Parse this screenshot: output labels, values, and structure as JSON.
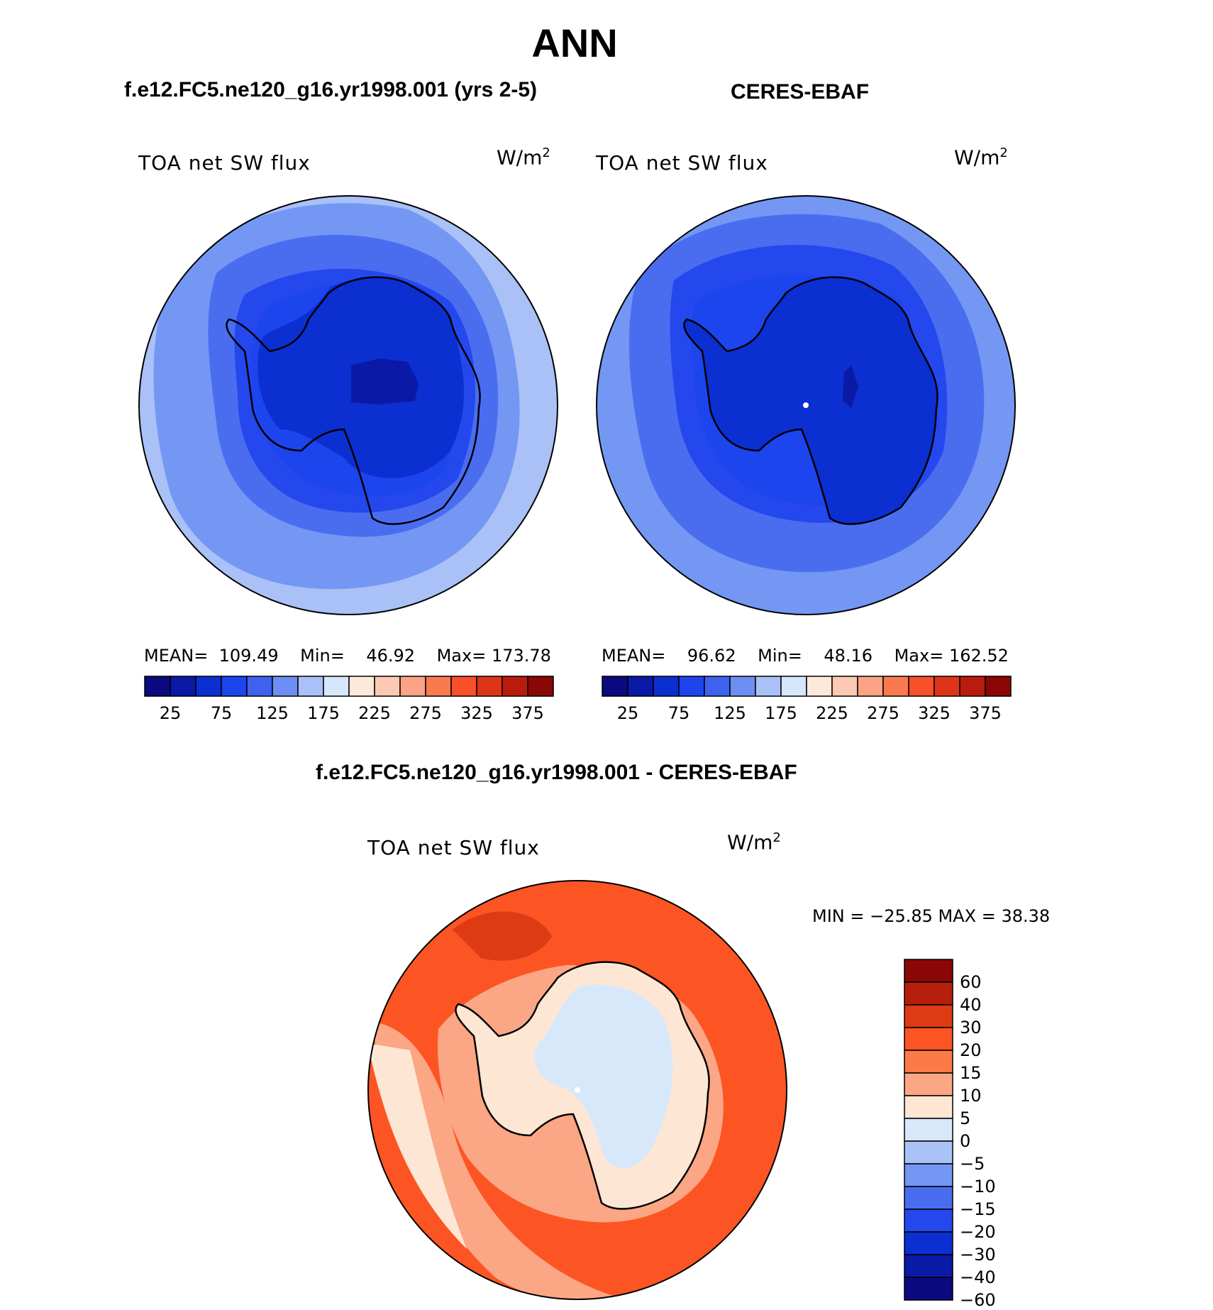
{
  "season": "ANN",
  "panels": [
    {
      "title": "f.e12.FC5.ne120_g16.yr1998.001 (yrs 2-5)",
      "variable": "TOA net SW flux",
      "units": "W/m",
      "mean_label": "MEAN=",
      "mean": "109.49",
      "min_label": "Min=",
      "min": "46.92",
      "max_label": "Max=",
      "max": "173.78"
    },
    {
      "title": "CERES-EBAF",
      "variable": "TOA net SW flux",
      "units": "W/m",
      "mean_label": "MEAN=",
      "mean": "96.62",
      "min_label": "Min=",
      "min": "48.16",
      "max_label": "Max=",
      "max": "162.52"
    }
  ],
  "diff": {
    "title": "f.e12.FC5.ne120_g16.yr1998.001 - CERES-EBAF",
    "variable": "TOA net SW flux",
    "units": "W/m",
    "minmax": "MIN = −25.85 MAX =   38.38"
  },
  "colorbar_abs": {
    "colors": [
      "#0b0a80",
      "#0a1aa6",
      "#0c2fd1",
      "#1c45ee",
      "#3e62ee",
      "#6d8ef2",
      "#a9c1f7",
      "#d6e6fb",
      "#fde9da",
      "#fccab3",
      "#fba384",
      "#fa7a4f",
      "#f7502a",
      "#de3417",
      "#b91c0c",
      "#8a0706"
    ],
    "ticks": [
      "25",
      "75",
      "125",
      "175",
      "225",
      "275",
      "325",
      "375"
    ]
  },
  "colorbar_diff": {
    "colors": [
      "#8a0706",
      "#b71f0d",
      "#de3a14",
      "#fc5523",
      "#fc7a48",
      "#fba684",
      "#fde6d4",
      "#d8e8fb",
      "#aac3f7",
      "#7397f3",
      "#4a6df0",
      "#2448ee",
      "#0c2fd1",
      "#0a1aa6",
      "#0b0a80"
    ],
    "ticks": [
      "60",
      "40",
      "30",
      "20",
      "15",
      "10",
      "5",
      "0",
      "−5",
      "−10",
      "−15",
      "−20",
      "−30",
      "−40",
      "−60"
    ]
  }
}
